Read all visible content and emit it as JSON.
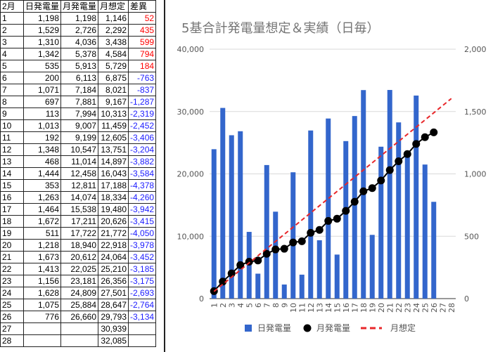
{
  "table": {
    "header": [
      "2月",
      "日発電量",
      "月発電量",
      "月想定",
      "差異"
    ],
    "rows": [
      [
        "1",
        "1,198",
        "1,198",
        "1,146",
        "52"
      ],
      [
        "2",
        "1,529",
        "2,726",
        "2,292",
        "435"
      ],
      [
        "3",
        "1,310",
        "4,036",
        "3,438",
        "599"
      ],
      [
        "4",
        "1,342",
        "5,378",
        "4,584",
        "794"
      ],
      [
        "5",
        "535",
        "5,913",
        "5,729",
        "184"
      ],
      [
        "6",
        "200",
        "6,113",
        "6,875",
        "-763"
      ],
      [
        "7",
        "1,071",
        "7,184",
        "8,021",
        "-837"
      ],
      [
        "8",
        "697",
        "7,881",
        "9,167",
        "-1,287"
      ],
      [
        "9",
        "113",
        "7,994",
        "10,313",
        "-2,319"
      ],
      [
        "10",
        "1,013",
        "9,007",
        "11,459",
        "-2,452"
      ],
      [
        "11",
        "192",
        "9,199",
        "12,605",
        "-3,406"
      ],
      [
        "12",
        "1,348",
        "10,547",
        "13,751",
        "-3,204"
      ],
      [
        "13",
        "468",
        "11,014",
        "14,897",
        "-3,882"
      ],
      [
        "14",
        "1,444",
        "12,458",
        "16,043",
        "-3,584"
      ],
      [
        "15",
        "353",
        "12,811",
        "17,188",
        "-4,378"
      ],
      [
        "16",
        "1,263",
        "14,074",
        "18,334",
        "-4,260"
      ],
      [
        "17",
        "1,464",
        "15,538",
        "19,480",
        "-3,942"
      ],
      [
        "18",
        "1,672",
        "17,211",
        "20,626",
        "-3,415"
      ],
      [
        "19",
        "511",
        "17,722",
        "21,772",
        "-4,050"
      ],
      [
        "20",
        "1,218",
        "18,940",
        "22,918",
        "-3,978"
      ],
      [
        "21",
        "1,673",
        "20,612",
        "24,064",
        "-3,452"
      ],
      [
        "22",
        "1,413",
        "22,025",
        "25,210",
        "-3,185"
      ],
      [
        "23",
        "1,156",
        "23,181",
        "26,356",
        "-3,175"
      ],
      [
        "24",
        "1,628",
        "24,809",
        "27,501",
        "-2,693"
      ],
      [
        "25",
        "1,075",
        "25,884",
        "28,647",
        "-2,764"
      ],
      [
        "26",
        "776",
        "26,660",
        "29,793",
        "-3,134"
      ],
      [
        "27",
        null,
        null,
        "30,939",
        null
      ],
      [
        "28",
        null,
        null,
        "32,085",
        null
      ]
    ],
    "positive_color": "#ff0000",
    "negative_color": "#1c1cff"
  },
  "chart_data": {
    "type": "combo",
    "title": "5基合計発電量想定＆実績（日毎）",
    "categories": [
      "1",
      "2",
      "3",
      "4",
      "5",
      "6",
      "7",
      "8",
      "9",
      "10",
      "11",
      "12",
      "13",
      "14",
      "15",
      "16",
      "17",
      "18",
      "19",
      "20",
      "21",
      "22",
      "23",
      "24",
      "25",
      "26",
      "27",
      "28"
    ],
    "series": [
      {
        "name": "日発電量",
        "type": "bar",
        "axis": "y2",
        "color": "#3366cc",
        "values": [
          1198,
          1529,
          1310,
          1342,
          535,
          200,
          1071,
          697,
          113,
          1013,
          192,
          1348,
          468,
          1444,
          353,
          1263,
          1464,
          1672,
          511,
          1218,
          1673,
          1413,
          1156,
          1628,
          1075,
          776,
          null,
          null
        ]
      },
      {
        "name": "月発電量",
        "type": "line",
        "marker": "circle",
        "color": "#000000",
        "values": [
          1198,
          2726,
          4036,
          5378,
          5913,
          6113,
          7184,
          7881,
          7994,
          9007,
          9199,
          10547,
          11014,
          12458,
          12811,
          14074,
          15538,
          17211,
          17722,
          18940,
          20612,
          22025,
          23181,
          24809,
          25884,
          26660,
          null,
          null
        ]
      },
      {
        "name": "月想定",
        "type": "line",
        "dashed": true,
        "color": "#e8272a",
        "values": [
          1146,
          2292,
          3438,
          4584,
          5729,
          6875,
          8021,
          9167,
          10313,
          11459,
          12605,
          13751,
          14897,
          16043,
          17188,
          18334,
          19480,
          20626,
          21772,
          22918,
          24064,
          25210,
          26356,
          27501,
          28647,
          29793,
          30939,
          32085
        ]
      }
    ],
    "ylim": [
      0,
      40000
    ],
    "yticks": [
      0,
      {
        "value": 10000,
        "label": "10,000"
      },
      {
        "value": 20000,
        "label": "20,000"
      },
      {
        "value": 30000,
        "label": "30,000"
      },
      {
        "value": 40000,
        "label": "40,000"
      }
    ],
    "y2lim": [
      0,
      2000
    ],
    "y2ticks": [
      0,
      500,
      {
        "value": 1000,
        "label": "1,000"
      },
      {
        "value": 1500,
        "label": "1,500"
      },
      {
        "value": 2000,
        "label": "2,000"
      }
    ],
    "grid": true,
    "legend": "bottom"
  }
}
